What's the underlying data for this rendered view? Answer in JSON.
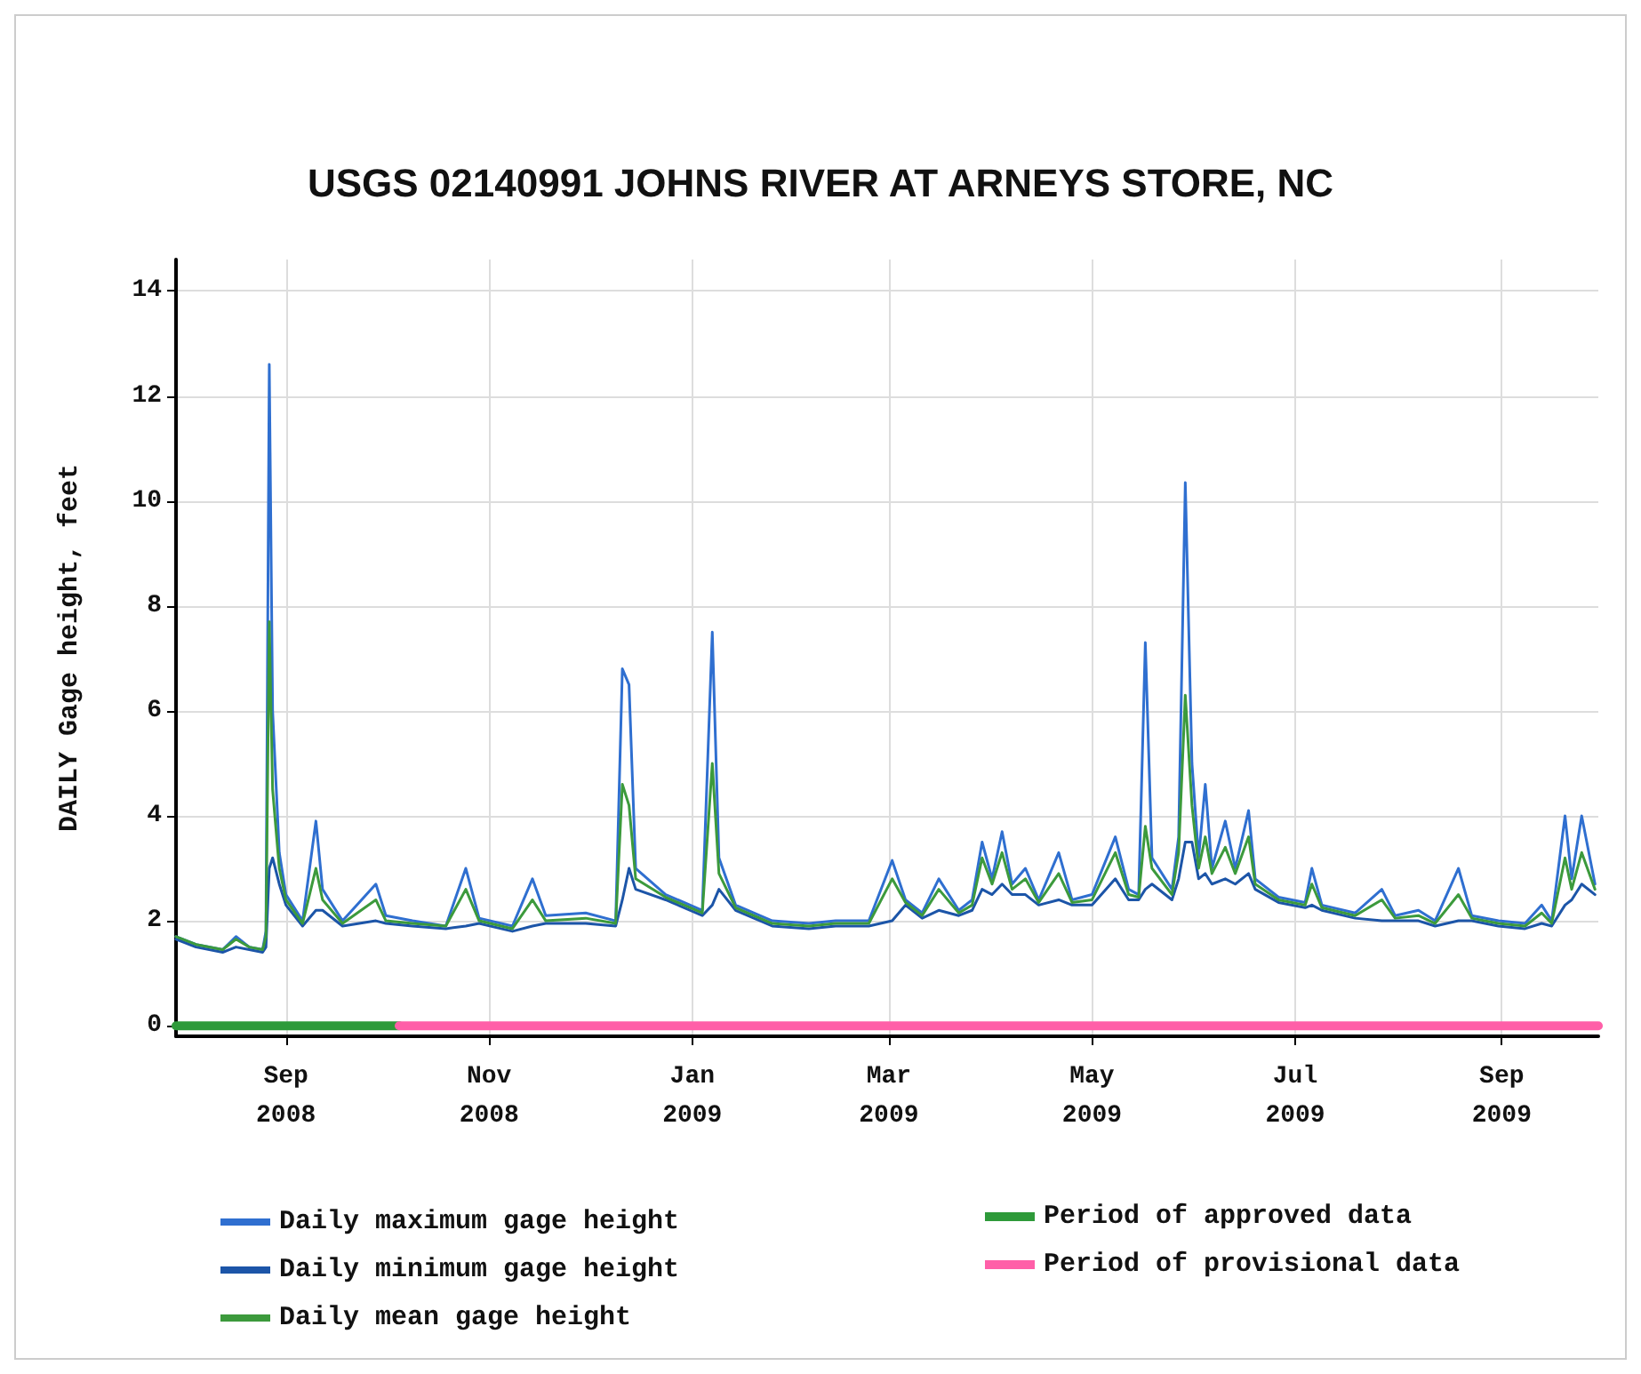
{
  "chart_data": {
    "type": "line",
    "title": "USGS 02140991 JOHNS RIVER AT ARNEYS STORE, NC",
    "ylabel": "DAILY Gage height, feet",
    "x": [
      "2008-07-30",
      "2008-08-05",
      "2008-08-13",
      "2008-08-17",
      "2008-08-21",
      "2008-08-25",
      "2008-08-26",
      "2008-08-27",
      "2008-08-28",
      "2008-08-30",
      "2008-09-01",
      "2008-09-06",
      "2008-09-10",
      "2008-09-12",
      "2008-09-18",
      "2008-09-28",
      "2008-10-01",
      "2008-10-09",
      "2008-10-19",
      "2008-10-25",
      "2008-10-29",
      "2008-11-08",
      "2008-11-14",
      "2008-11-18",
      "2008-11-30",
      "2008-12-09",
      "2008-12-11",
      "2008-12-13",
      "2008-12-15",
      "2008-12-24",
      "2009-01-04",
      "2009-01-07",
      "2009-01-09",
      "2009-01-14",
      "2009-01-25",
      "2009-02-05",
      "2009-02-13",
      "2009-02-23",
      "2009-03-02",
      "2009-03-06",
      "2009-03-11",
      "2009-03-16",
      "2009-03-22",
      "2009-03-26",
      "2009-03-29",
      "2009-04-01",
      "2009-04-04",
      "2009-04-07",
      "2009-04-11",
      "2009-04-15",
      "2009-04-21",
      "2009-04-25",
      "2009-05-01",
      "2009-05-08",
      "2009-05-12",
      "2009-05-15",
      "2009-05-17",
      "2009-05-19",
      "2009-05-25",
      "2009-05-27",
      "2009-05-29",
      "2009-05-31",
      "2009-06-02",
      "2009-06-04",
      "2009-06-06",
      "2009-06-10",
      "2009-06-13",
      "2009-06-17",
      "2009-06-19",
      "2009-06-26",
      "2009-07-04",
      "2009-07-06",
      "2009-07-09",
      "2009-07-19",
      "2009-07-27",
      "2009-07-31",
      "2009-08-07",
      "2009-08-12",
      "2009-08-19",
      "2009-08-23",
      "2009-08-31",
      "2009-09-08",
      "2009-09-13",
      "2009-09-16",
      "2009-09-20",
      "2009-09-22",
      "2009-09-25",
      "2009-09-29"
    ],
    "series": [
      {
        "name": "Daily maximum gage height",
        "color": "#2f6fd0",
        "values": [
          1.7,
          1.55,
          1.45,
          1.7,
          1.5,
          1.45,
          1.8,
          12.6,
          6.0,
          3.3,
          2.5,
          2.0,
          3.9,
          2.6,
          2.0,
          2.7,
          2.1,
          2.0,
          1.9,
          3.0,
          2.05,
          1.9,
          2.8,
          2.1,
          2.15,
          2.0,
          6.8,
          6.5,
          3.0,
          2.5,
          2.2,
          7.5,
          3.2,
          2.3,
          2.0,
          1.95,
          2.0,
          2.0,
          3.15,
          2.4,
          2.15,
          2.8,
          2.2,
          2.4,
          3.5,
          2.8,
          3.7,
          2.7,
          3.0,
          2.4,
          3.3,
          2.4,
          2.5,
          3.6,
          2.6,
          2.5,
          7.3,
          3.2,
          2.6,
          3.6,
          10.35,
          5.0,
          3.2,
          4.6,
          3.0,
          3.9,
          3.0,
          4.1,
          2.8,
          2.45,
          2.35,
          3.0,
          2.3,
          2.15,
          2.6,
          2.1,
          2.2,
          2.0,
          3.0,
          2.1,
          2.0,
          1.95,
          2.3,
          2.0,
          4.0,
          2.8,
          4.0,
          2.7
        ]
      },
      {
        "name": "Daily minimum gage height",
        "color": "#1c55a8",
        "values": [
          1.65,
          1.5,
          1.4,
          1.5,
          1.45,
          1.4,
          1.5,
          3.0,
          3.2,
          2.7,
          2.3,
          1.9,
          2.2,
          2.2,
          1.9,
          2.0,
          1.95,
          1.9,
          1.85,
          1.9,
          1.95,
          1.8,
          1.9,
          1.95,
          1.95,
          1.9,
          2.4,
          3.0,
          2.6,
          2.4,
          2.1,
          2.3,
          2.6,
          2.2,
          1.9,
          1.85,
          1.9,
          1.9,
          2.0,
          2.3,
          2.05,
          2.2,
          2.1,
          2.2,
          2.6,
          2.5,
          2.7,
          2.5,
          2.5,
          2.3,
          2.4,
          2.3,
          2.3,
          2.8,
          2.4,
          2.4,
          2.6,
          2.7,
          2.4,
          2.8,
          3.5,
          3.5,
          2.8,
          2.9,
          2.7,
          2.8,
          2.7,
          2.9,
          2.6,
          2.35,
          2.25,
          2.3,
          2.2,
          2.05,
          2.0,
          2.0,
          2.0,
          1.9,
          2.0,
          2.0,
          1.9,
          1.85,
          1.95,
          1.9,
          2.3,
          2.4,
          2.7,
          2.5
        ]
      },
      {
        "name": "Daily mean gage height",
        "color": "#3c9a3c",
        "values": [
          1.7,
          1.55,
          1.45,
          1.65,
          1.5,
          1.45,
          1.7,
          7.7,
          4.5,
          3.0,
          2.4,
          1.95,
          3.0,
          2.4,
          1.95,
          2.4,
          2.0,
          1.95,
          1.9,
          2.6,
          2.0,
          1.85,
          2.4,
          2.0,
          2.05,
          1.95,
          4.6,
          4.2,
          2.8,
          2.45,
          2.15,
          5.0,
          2.9,
          2.25,
          1.95,
          1.9,
          1.95,
          1.95,
          2.8,
          2.35,
          2.1,
          2.6,
          2.15,
          2.3,
          3.2,
          2.7,
          3.3,
          2.6,
          2.8,
          2.35,
          2.9,
          2.35,
          2.4,
          3.3,
          2.5,
          2.45,
          3.8,
          3.0,
          2.5,
          3.3,
          6.3,
          4.2,
          3.0,
          3.6,
          2.9,
          3.4,
          2.9,
          3.6,
          2.7,
          2.4,
          2.3,
          2.7,
          2.25,
          2.1,
          2.4,
          2.05,
          2.1,
          1.95,
          2.5,
          2.05,
          1.95,
          1.9,
          2.15,
          1.95,
          3.2,
          2.6,
          3.3,
          2.6
        ]
      },
      {
        "name": "Period of approved data",
        "color": "#2e9a3a",
        "x": [
          "2008-07-30",
          "2008-10-05"
        ],
        "values": [
          0,
          0
        ]
      },
      {
        "name": "Period of provisional data",
        "color": "#ff5fa8",
        "x": [
          "2008-10-05",
          "2009-09-30"
        ],
        "values": [
          0,
          0
        ]
      }
    ],
    "xlim": [
      "2008-07-30",
      "2009-09-30"
    ],
    "xticks": [
      {
        "value": "2008-09-01",
        "label": "Sep\n2008"
      },
      {
        "value": "2008-11-01",
        "label": "Nov\n2008"
      },
      {
        "value": "2009-01-01",
        "label": "Jan\n2009"
      },
      {
        "value": "2009-03-01",
        "label": "Mar\n2009"
      },
      {
        "value": "2009-05-01",
        "label": "May\n2009"
      },
      {
        "value": "2009-07-01",
        "label": "Jul\n2009"
      },
      {
        "value": "2009-09-01",
        "label": "Sep\n2009"
      }
    ],
    "ylim": [
      -0.2,
      14.6
    ],
    "yticks": [
      0,
      2,
      4,
      6,
      8,
      10,
      12,
      14
    ],
    "grid": true,
    "legend": "bottom",
    "marker": "none",
    "line_style": "solid"
  }
}
